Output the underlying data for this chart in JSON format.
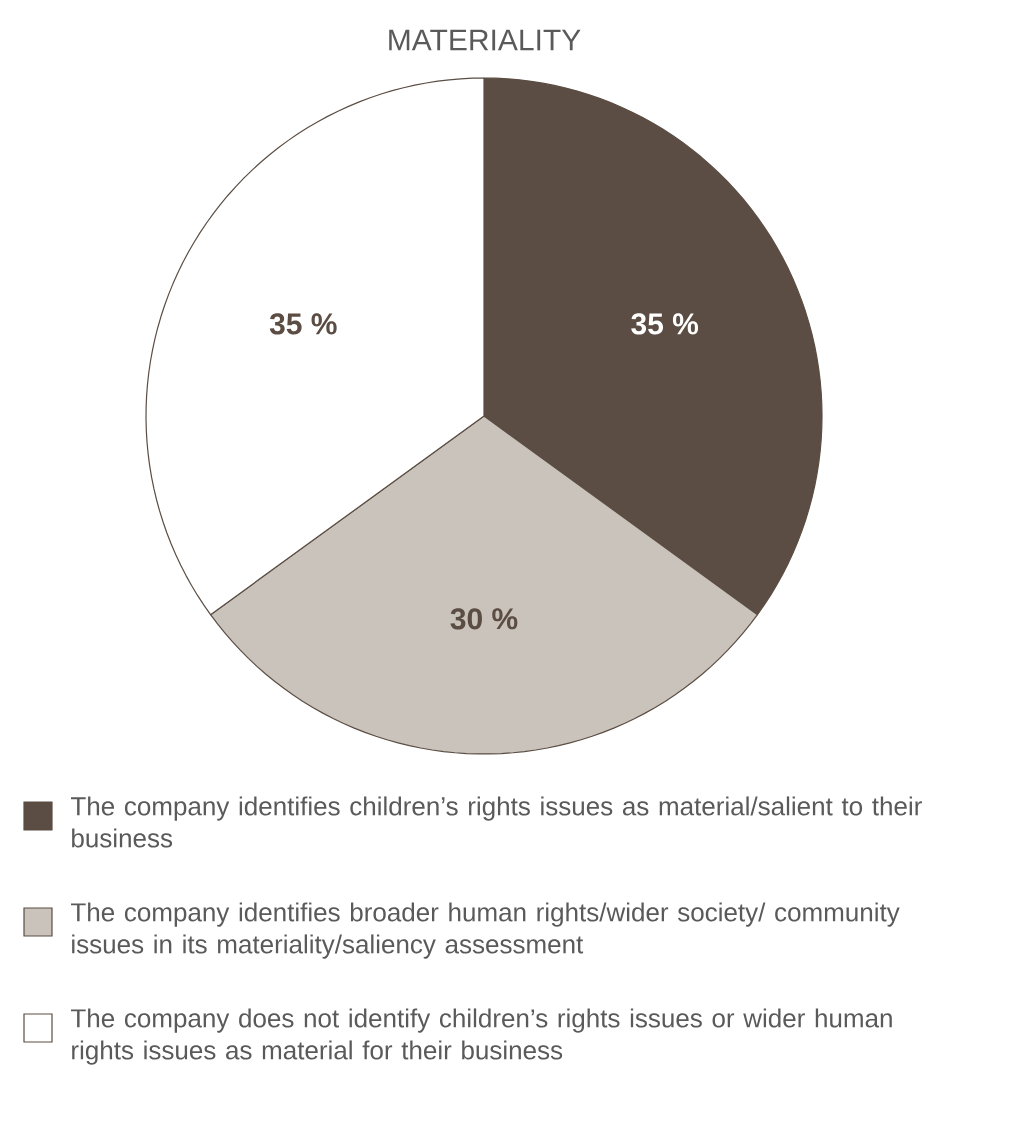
{
  "chart_data": {
    "type": "pie",
    "title": "MATERIALITY",
    "categories": [
      "The company identifies children’s rights issues as material/salient to their business",
      "The company identifies broader human rights/wider society/ community issues in its materiality/saliency assessment",
      "The company does not identify children’s rights issues or wider human rights issues as material for their business"
    ],
    "values": [
      35,
      30,
      35
    ],
    "colors": [
      "#5b4d43",
      "#c9c3bc",
      "#ffffff"
    ],
    "value_labels": [
      "35 %",
      "30 %",
      "35 %"
    ],
    "legend": "bottom"
  }
}
